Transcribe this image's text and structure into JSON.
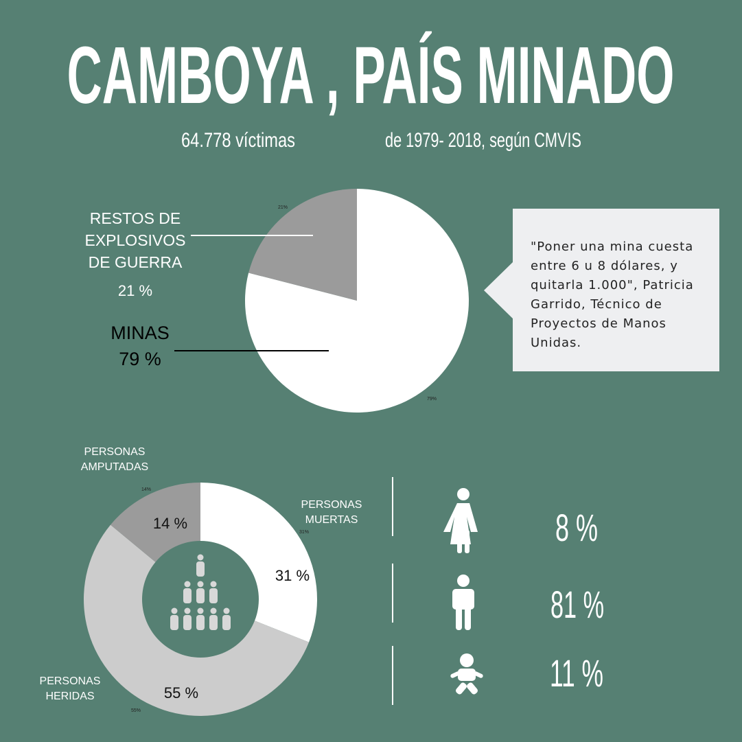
{
  "title": "CAMBOYA , PAÍS MINADO",
  "subtitle": [
    "64.778 víctimas",
    "de 1979- 2018, según CMVIS"
  ],
  "chart_data": [
    {
      "type": "pie",
      "categories": [
        "MINAS",
        "RESTOS DE EXPLOSIVOS DE GUERRA"
      ],
      "values": [
        79,
        21
      ],
      "value_labels": [
        "79 %",
        "21 %"
      ],
      "slice_labels": [
        "79%",
        "21%"
      ],
      "colors": [
        "#ffffff",
        "#9b9b9b"
      ]
    },
    {
      "type": "donut",
      "categories": [
        "PERSONAS MUERTAS",
        "PERSONAS HERIDAS",
        "PERSONAS AMPUTADAS"
      ],
      "values": [
        31,
        55,
        14
      ],
      "value_labels": [
        "31 %",
        "55 %",
        "14 %"
      ],
      "slice_labels": [
        "31%",
        "55%",
        "14%"
      ],
      "colors": [
        "#ffffff",
        "#cccccc",
        "#9b9b9b"
      ]
    }
  ],
  "quote": "\"Poner una mina cuesta entre 6 u 8 dólares, y quitarla 1.000\", Patricia Garrido, Técnico de Proyectos de Manos Unidas.",
  "demographics": [
    "8 %",
    "81 %",
    "11 %"
  ]
}
